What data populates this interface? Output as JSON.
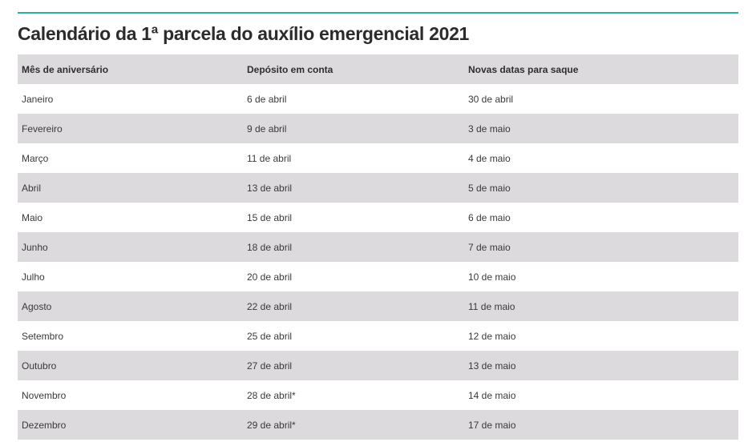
{
  "title": "Calendário da 1ª parcela do auxílio emergencial 2021",
  "colors": {
    "accent_rule": "#2ab39a",
    "row_shade": "#dcdadc"
  },
  "table": {
    "headers": [
      "Mês de aniversário",
      "Depósito em conta",
      "Novas datas para saque"
    ],
    "rows": [
      [
        "Janeiro",
        "6 de abril",
        "30 de abril"
      ],
      [
        "Fevereiro",
        "9 de abril",
        "3 de maio"
      ],
      [
        "Março",
        "11 de abril",
        "4 de maio"
      ],
      [
        "Abril",
        "13 de abril",
        "5 de maio"
      ],
      [
        "Maio",
        "15 de abril",
        "6 de maio"
      ],
      [
        "Junho",
        "18 de abril",
        "7 de maio"
      ],
      [
        "Julho",
        "20 de abril",
        "10 de maio"
      ],
      [
        "Agosto",
        "22 de abril",
        "11 de maio"
      ],
      [
        "Setembro",
        "25 de abril",
        "12 de maio"
      ],
      [
        "Outubro",
        "27 de abril",
        "13 de maio"
      ],
      [
        "Novembro",
        "28 de abril*",
        "14 de maio"
      ],
      [
        "Dezembro",
        "29 de abril*",
        "17 de maio"
      ]
    ]
  }
}
